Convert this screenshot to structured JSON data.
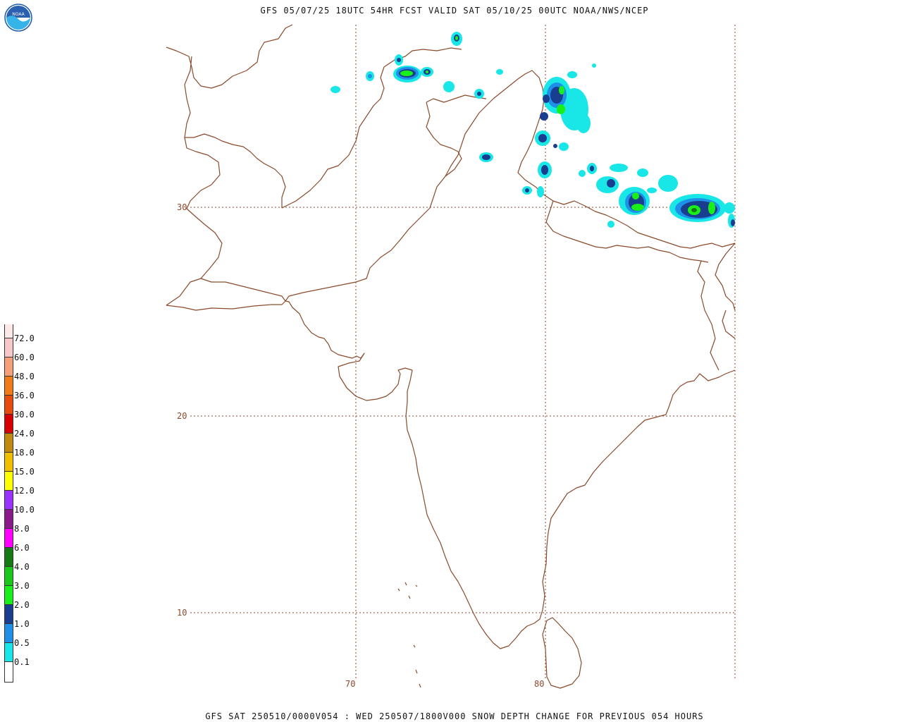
{
  "header": {
    "title": "GFS 05/07/25 18UTC 54HR FCST VALID SAT 05/10/25 00UTC NOAA/NWS/NCEP"
  },
  "footer": {
    "text": "GFS SAT 250510/0000V054 : WED 250507/1800V000 SNOW DEPTH CHANGE FOR PREVIOUS 054 HOURS"
  },
  "logo": {
    "text": "NOAA"
  },
  "map": {
    "region": "South Asia",
    "grid_labels": {
      "lat": [
        "30",
        "20",
        "10"
      ],
      "lon": [
        "70",
        "80"
      ]
    },
    "colors": {
      "boundary": "#8b4a2b",
      "grid": "#8b4a2b"
    }
  },
  "legend": {
    "items": [
      {
        "label": "72.0",
        "color": "#f7c8c8"
      },
      {
        "label": "60.0",
        "color": "#f4a07a"
      },
      {
        "label": "48.0",
        "color": "#f07b18"
      },
      {
        "label": "36.0",
        "color": "#e84c0c"
      },
      {
        "label": "30.0",
        "color": "#d60000"
      },
      {
        "label": "24.0",
        "color": "#c08a10"
      },
      {
        "label": "18.0",
        "color": "#f0c000"
      },
      {
        "label": "15.0",
        "color": "#ffff00"
      },
      {
        "label": "12.0",
        "color": "#9933ff"
      },
      {
        "label": "10.0",
        "color": "#8a1a8a"
      },
      {
        "label": "8.0",
        "color": "#ff00ff"
      },
      {
        "label": "6.0",
        "color": "#157a15"
      },
      {
        "label": "4.0",
        "color": "#19c819"
      },
      {
        "label": "3.0",
        "color": "#19f019"
      },
      {
        "label": "2.0",
        "color": "#1a3e8f"
      },
      {
        "label": "1.0",
        "color": "#1e90e8"
      },
      {
        "label": "0.5",
        "color": "#19e6e6"
      },
      {
        "label": "0.1",
        "color": ""
      }
    ],
    "top_color": "#fde8e8"
  }
}
